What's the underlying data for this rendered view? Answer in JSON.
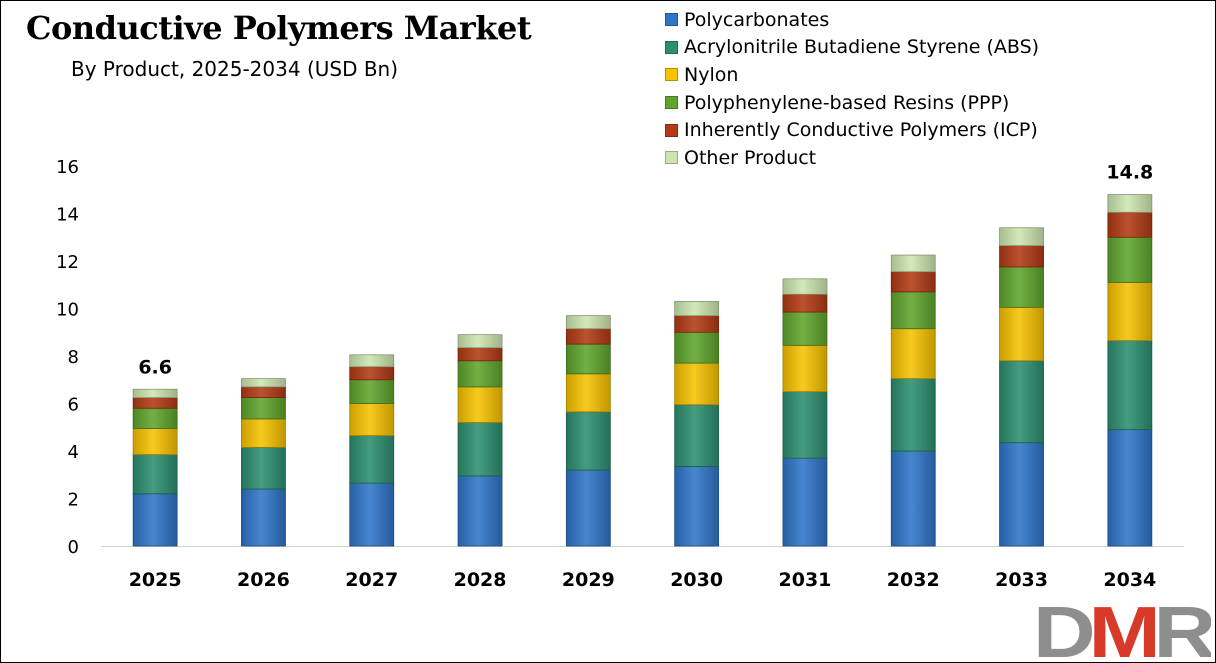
{
  "chart_data": {
    "type": "bar",
    "stacked": true,
    "title": "Conductive Polymers Market",
    "subtitle": "By Product, 2025-2034 (USD Bn)",
    "xlabel": "",
    "ylabel": "",
    "ylim": [
      0,
      16
    ],
    "yticks": [
      0,
      2,
      4,
      6,
      8,
      10,
      12,
      14,
      16
    ],
    "grid": false,
    "legend_position": "top-right",
    "categories": [
      "2025",
      "2026",
      "2027",
      "2028",
      "2029",
      "2030",
      "2031",
      "2032",
      "2033",
      "2034"
    ],
    "series": [
      {
        "name": "Polycarbonates",
        "color": "#2E75C8",
        "values": [
          2.2,
          2.4,
          2.65,
          2.95,
          3.2,
          3.35,
          3.7,
          4.0,
          4.35,
          4.9
        ]
      },
      {
        "name": "Acrylonitrile Butadiene Styrene (ABS)",
        "color": "#2C8F70",
        "values": [
          1.65,
          1.75,
          2.0,
          2.25,
          2.45,
          2.6,
          2.8,
          3.05,
          3.45,
          3.75
        ]
      },
      {
        "name": "Nylon",
        "color": "#F7C200",
        "values": [
          1.1,
          1.2,
          1.35,
          1.5,
          1.6,
          1.75,
          1.95,
          2.1,
          2.25,
          2.45
        ]
      },
      {
        "name": "Polyphenylene-based Resins (PPP)",
        "color": "#5FA52C",
        "values": [
          0.85,
          0.9,
          1.0,
          1.1,
          1.25,
          1.3,
          1.4,
          1.55,
          1.7,
          1.9
        ]
      },
      {
        "name": "Inherently Conductive Polymers (ICP)",
        "color": "#B23A14",
        "values": [
          0.45,
          0.45,
          0.55,
          0.55,
          0.65,
          0.7,
          0.75,
          0.85,
          0.9,
          1.05
        ]
      },
      {
        "name": "Other Product",
        "color": "#CDE6B0",
        "values": [
          0.35,
          0.35,
          0.5,
          0.55,
          0.55,
          0.6,
          0.65,
          0.7,
          0.75,
          0.75
        ]
      }
    ],
    "data_labels": [
      {
        "category": "2025",
        "text": "6.6"
      },
      {
        "category": "2034",
        "text": "14.8"
      }
    ]
  },
  "logo": {
    "text": "DMR",
    "colors": {
      "D": "#8E8E8E",
      "M": "#D83A2A",
      "R": "#8E8E8E"
    }
  }
}
